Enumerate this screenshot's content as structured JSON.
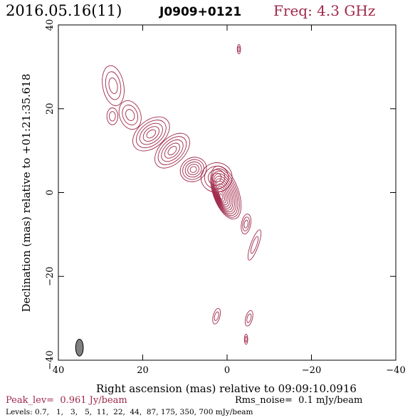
{
  "header": {
    "date_label": "2016.05.16(11)",
    "source_name": "J0909+0121",
    "freq_label": "Freq: 4.3 GHz"
  },
  "footer": {
    "peak_label": "Peak_lev=  0.961 Jy/beam",
    "rms_label": "Rms_noise=  0.1 mJy/beam",
    "levels_label": "Levels: 0.7,   1,   3,   5,  11,  22,  44,  87, 175, 350, 700 mJy/beam"
  },
  "colors": {
    "contour": "#a0284a",
    "accent": "#a0284a",
    "axis": "#000000",
    "beam_fill": "#808080"
  },
  "chart_data": {
    "type": "contour",
    "xlabel": "Right ascension (mas) relative to 09:09:10.0916",
    "ylabel": "Declination (mas) relative to +01:21:35.618",
    "xlim": [
      40,
      -40
    ],
    "ylim": [
      -40,
      40
    ],
    "x_ticks": [
      40,
      20,
      0,
      -20,
      -40
    ],
    "y_ticks": [
      40,
      20,
      0,
      -20,
      -40
    ],
    "x_tick_labels": [
      "40",
      "20",
      "0",
      "−20",
      "−40"
    ],
    "y_tick_labels": [
      "40",
      "20",
      "0",
      "−20",
      "−40"
    ],
    "contour_levels_mjy": [
      0.7,
      1,
      3,
      5,
      11,
      22,
      44,
      87,
      175,
      350,
      700
    ],
    "peak_jy_per_beam": 0.961,
    "rms_mjy_per_beam": 0.1,
    "core": {
      "x": 0,
      "y": 0
    },
    "beam": {
      "x": 35,
      "y": -37
    },
    "components": [
      {
        "id": "core",
        "x": 0.3,
        "y": 0.0,
        "rx": 3.0,
        "ry": 6.6,
        "angle": -20,
        "n_contours": 12
      },
      {
        "id": "knot-c1",
        "x": 2.5,
        "y": 3.6,
        "rx": 3.7,
        "ry": 3.5,
        "angle": -10,
        "n_contours": 4
      },
      {
        "id": "knot-k1",
        "x": 8.0,
        "y": 5.5,
        "rx": 3.2,
        "ry": 2.8,
        "angle": -30,
        "n_contours": 5
      },
      {
        "id": "knot-k2",
        "x": 13.0,
        "y": 10.0,
        "rx": 5.0,
        "ry": 3.0,
        "angle": -45,
        "n_contours": 5
      },
      {
        "id": "knot-k3",
        "x": 18.0,
        "y": 14.0,
        "rx": 5.0,
        "ry": 3.2,
        "angle": -40,
        "n_contours": 5
      },
      {
        "id": "knot-k4",
        "x": 23.0,
        "y": 18.5,
        "rx": 2.5,
        "ry": 3.5,
        "angle": -20,
        "n_contours": 3
      },
      {
        "id": "knot-k5",
        "x": 27.2,
        "y": 18.2,
        "rx": 1.3,
        "ry": 2.0,
        "angle": 0,
        "n_contours": 2
      },
      {
        "id": "lobe-nw",
        "x": 27.0,
        "y": 25.5,
        "rx": 2.5,
        "ry": 4.8,
        "angle": -10,
        "n_contours": 3
      },
      {
        "id": "spot-n",
        "x": -2.8,
        "y": 34.2,
        "rx": 0.4,
        "ry": 1.1,
        "angle": 0,
        "n_contours": 2
      },
      {
        "id": "spot-e1",
        "x": -4.5,
        "y": -7.5,
        "rx": 1.1,
        "ry": 2.4,
        "angle": 10,
        "n_contours": 3
      },
      {
        "id": "spot-e2",
        "x": -6.5,
        "y": -12.5,
        "rx": 0.9,
        "ry": 3.8,
        "angle": 20,
        "n_contours": 2
      },
      {
        "id": "spot-s1",
        "x": 2.5,
        "y": -29.5,
        "rx": 0.8,
        "ry": 1.9,
        "angle": 15,
        "n_contours": 2
      },
      {
        "id": "spot-s2",
        "x": -5.2,
        "y": -30.0,
        "rx": 0.8,
        "ry": 1.9,
        "angle": 15,
        "n_contours": 2
      },
      {
        "id": "spot-s3",
        "x": -4.5,
        "y": -35.0,
        "rx": 0.4,
        "ry": 1.2,
        "angle": 0,
        "n_contours": 2
      }
    ]
  }
}
